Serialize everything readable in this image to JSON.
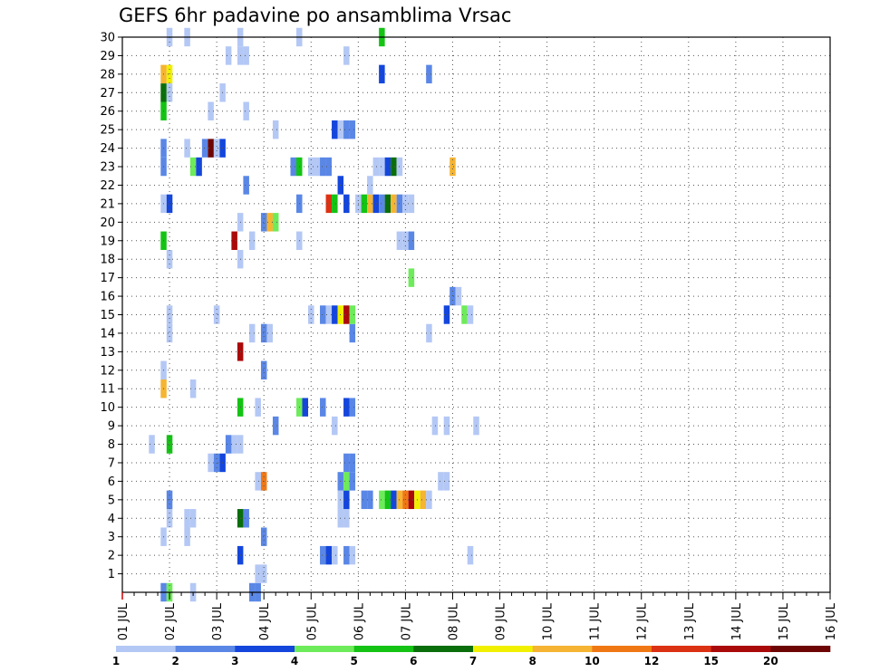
{
  "chart_data": {
    "type": "heatmap",
    "title": "GEFS 6hr padavine po ansamblima Vrsac",
    "xlabel": "",
    "ylabel": "",
    "x_ticks": [
      "01 JUL",
      "02 JUL",
      "03 JUL",
      "04 JUL",
      "05 JUL",
      "06 JUL",
      "07 JUL",
      "08 JUL",
      "09 JUL",
      "10 JUL",
      "11 JUL",
      "12 JUL",
      "13 JUL",
      "14 JUL",
      "15 JUL",
      "16 JUL"
    ],
    "y_ticks": [
      "1",
      "2",
      "3",
      "4",
      "5",
      "6",
      "7",
      "8",
      "9",
      "10",
      "11",
      "12",
      "13",
      "14",
      "15",
      "16",
      "17",
      "18",
      "19",
      "20",
      "21",
      "22",
      "23",
      "24",
      "25",
      "26",
      "27",
      "28",
      "29",
      "30"
    ],
    "xlim": [
      0,
      60
    ],
    "ylim": [
      0,
      30
    ],
    "grid": true,
    "legend": {
      "position": "bottom",
      "labels": [
        "1",
        "2",
        "3",
        "4",
        "5",
        "6",
        "7",
        "8",
        "10",
        "12",
        "15",
        "20"
      ],
      "colors": [
        "#b4c8f5",
        "#5a87e6",
        "#1446dc",
        "#6eeb5a",
        "#14c314",
        "#0a6e0a",
        "#f0f000",
        "#f5b432",
        "#f07814",
        "#dc3214",
        "#aa0a0a",
        "#6e0505"
      ]
    },
    "cells": [
      {
        "x": 3.5,
        "y": 0,
        "c": 2
      },
      {
        "x": 4,
        "y": 0,
        "c": 4
      },
      {
        "x": 6,
        "y": 0,
        "c": 1
      },
      {
        "x": 11,
        "y": 0,
        "c": 2
      },
      {
        "x": 11.5,
        "y": 0,
        "c": 2
      },
      {
        "x": 11.5,
        "y": 1,
        "c": 1
      },
      {
        "x": 12,
        "y": 1,
        "c": 1
      },
      {
        "x": 10,
        "y": 2,
        "c": 3
      },
      {
        "x": 17,
        "y": 2,
        "c": 2
      },
      {
        "x": 17.5,
        "y": 2,
        "c": 3
      },
      {
        "x": 18,
        "y": 2,
        "c": 1
      },
      {
        "x": 19,
        "y": 2,
        "c": 2
      },
      {
        "x": 19.5,
        "y": 2,
        "c": 1
      },
      {
        "x": 29.5,
        "y": 2,
        "c": 1
      },
      {
        "x": 3.5,
        "y": 3,
        "c": 1
      },
      {
        "x": 5.5,
        "y": 3,
        "c": 1
      },
      {
        "x": 12,
        "y": 3,
        "c": 2
      },
      {
        "x": 4,
        "y": 4,
        "c": 1
      },
      {
        "x": 5.5,
        "y": 4,
        "c": 1
      },
      {
        "x": 6,
        "y": 4,
        "c": 1
      },
      {
        "x": 10,
        "y": 4,
        "c": 6
      },
      {
        "x": 10.5,
        "y": 4,
        "c": 2
      },
      {
        "x": 18.5,
        "y": 4,
        "c": 1
      },
      {
        "x": 19,
        "y": 4,
        "c": 1
      },
      {
        "x": 4,
        "y": 5,
        "c": 2
      },
      {
        "x": 18.5,
        "y": 5,
        "c": 1
      },
      {
        "x": 19,
        "y": 5,
        "c": 3
      },
      {
        "x": 20.5,
        "y": 5,
        "c": 2
      },
      {
        "x": 21,
        "y": 5,
        "c": 2
      },
      {
        "x": 22,
        "y": 5,
        "c": 4
      },
      {
        "x": 22.5,
        "y": 5,
        "c": 5
      },
      {
        "x": 23,
        "y": 5,
        "c": 3
      },
      {
        "x": 23.5,
        "y": 5,
        "c": 8
      },
      {
        "x": 24,
        "y": 5,
        "c": 9
      },
      {
        "x": 24.5,
        "y": 5,
        "c": 11
      },
      {
        "x": 25,
        "y": 5,
        "c": 7
      },
      {
        "x": 25.5,
        "y": 5,
        "c": 8
      },
      {
        "x": 26,
        "y": 5,
        "c": 1
      },
      {
        "x": 11.5,
        "y": 6,
        "c": 1
      },
      {
        "x": 12,
        "y": 6,
        "c": 9
      },
      {
        "x": 18.5,
        "y": 6,
        "c": 2
      },
      {
        "x": 19,
        "y": 6,
        "c": 4
      },
      {
        "x": 19.5,
        "y": 6,
        "c": 2
      },
      {
        "x": 27,
        "y": 6,
        "c": 1
      },
      {
        "x": 27.5,
        "y": 6,
        "c": 1
      },
      {
        "x": 7.5,
        "y": 7,
        "c": 1
      },
      {
        "x": 8,
        "y": 7,
        "c": 2
      },
      {
        "x": 8.5,
        "y": 7,
        "c": 3
      },
      {
        "x": 19,
        "y": 7,
        "c": 2
      },
      {
        "x": 19.5,
        "y": 7,
        "c": 2
      },
      {
        "x": 2.5,
        "y": 8,
        "c": 1
      },
      {
        "x": 4,
        "y": 8,
        "c": 5
      },
      {
        "x": 9,
        "y": 8,
        "c": 2
      },
      {
        "x": 9.5,
        "y": 8,
        "c": 1
      },
      {
        "x": 10,
        "y": 8,
        "c": 1
      },
      {
        "x": 13,
        "y": 9,
        "c": 2
      },
      {
        "x": 18,
        "y": 9,
        "c": 1
      },
      {
        "x": 26.5,
        "y": 9,
        "c": 1
      },
      {
        "x": 27.5,
        "y": 9,
        "c": 1
      },
      {
        "x": 30,
        "y": 9,
        "c": 1
      },
      {
        "x": 10,
        "y": 10,
        "c": 5
      },
      {
        "x": 11.5,
        "y": 10,
        "c": 1
      },
      {
        "x": 15,
        "y": 10,
        "c": 4
      },
      {
        "x": 15.5,
        "y": 10,
        "c": 3
      },
      {
        "x": 17,
        "y": 10,
        "c": 2
      },
      {
        "x": 19,
        "y": 10,
        "c": 3
      },
      {
        "x": 19.5,
        "y": 10,
        "c": 2
      },
      {
        "x": 3.5,
        "y": 11,
        "c": 8
      },
      {
        "x": 6,
        "y": 11,
        "c": 1
      },
      {
        "x": 3.5,
        "y": 12,
        "c": 1
      },
      {
        "x": 12,
        "y": 12,
        "c": 2
      },
      {
        "x": 10,
        "y": 13,
        "c": 11
      },
      {
        "x": 4,
        "y": 14,
        "c": 1
      },
      {
        "x": 11,
        "y": 14,
        "c": 1
      },
      {
        "x": 12,
        "y": 14,
        "c": 2
      },
      {
        "x": 12.5,
        "y": 14,
        "c": 1
      },
      {
        "x": 19.5,
        "y": 14,
        "c": 2
      },
      {
        "x": 26,
        "y": 14,
        "c": 1
      },
      {
        "x": 4,
        "y": 15,
        "c": 1
      },
      {
        "x": 8,
        "y": 15,
        "c": 1
      },
      {
        "x": 16,
        "y": 15,
        "c": 1
      },
      {
        "x": 17,
        "y": 15,
        "c": 2
      },
      {
        "x": 17.5,
        "y": 15,
        "c": 1
      },
      {
        "x": 18,
        "y": 15,
        "c": 3
      },
      {
        "x": 18.5,
        "y": 15,
        "c": 7
      },
      {
        "x": 19,
        "y": 15,
        "c": 11
      },
      {
        "x": 19.5,
        "y": 15,
        "c": 4
      },
      {
        "x": 27.5,
        "y": 15,
        "c": 3
      },
      {
        "x": 29,
        "y": 15,
        "c": 4
      },
      {
        "x": 29.5,
        "y": 15,
        "c": 1
      },
      {
        "x": 28,
        "y": 16,
        "c": 2
      },
      {
        "x": 28.5,
        "y": 16,
        "c": 1
      },
      {
        "x": 24.5,
        "y": 17,
        "c": 4
      },
      {
        "x": 4,
        "y": 18,
        "c": 1
      },
      {
        "x": 10,
        "y": 18,
        "c": 1
      },
      {
        "x": 3.5,
        "y": 19,
        "c": 5
      },
      {
        "x": 9.5,
        "y": 19,
        "c": 11
      },
      {
        "x": 11,
        "y": 19,
        "c": 1
      },
      {
        "x": 15,
        "y": 19,
        "c": 1
      },
      {
        "x": 23.5,
        "y": 19,
        "c": 1
      },
      {
        "x": 24,
        "y": 19,
        "c": 1
      },
      {
        "x": 24.5,
        "y": 19,
        "c": 2
      },
      {
        "x": 10,
        "y": 20,
        "c": 1
      },
      {
        "x": 12,
        "y": 20,
        "c": 2
      },
      {
        "x": 12.5,
        "y": 20,
        "c": 8
      },
      {
        "x": 13,
        "y": 20,
        "c": 4
      },
      {
        "x": 3.5,
        "y": 21,
        "c": 1
      },
      {
        "x": 4,
        "y": 21,
        "c": 3
      },
      {
        "x": 15,
        "y": 21,
        "c": 2
      },
      {
        "x": 17.5,
        "y": 21,
        "c": 10
      },
      {
        "x": 18,
        "y": 21,
        "c": 5
      },
      {
        "x": 19,
        "y": 21,
        "c": 3
      },
      {
        "x": 20,
        "y": 21,
        "c": 1
      },
      {
        "x": 20.5,
        "y": 21,
        "c": 5
      },
      {
        "x": 21,
        "y": 21,
        "c": 8
      },
      {
        "x": 21.5,
        "y": 21,
        "c": 3
      },
      {
        "x": 22,
        "y": 21,
        "c": 2
      },
      {
        "x": 22.5,
        "y": 21,
        "c": 6
      },
      {
        "x": 23,
        "y": 21,
        "c": 8
      },
      {
        "x": 23.5,
        "y": 21,
        "c": 2
      },
      {
        "x": 24,
        "y": 21,
        "c": 1
      },
      {
        "x": 24.5,
        "y": 21,
        "c": 1
      },
      {
        "x": 10.5,
        "y": 22,
        "c": 2
      },
      {
        "x": 18.5,
        "y": 22,
        "c": 3
      },
      {
        "x": 21,
        "y": 22,
        "c": 1
      },
      {
        "x": 3.5,
        "y": 23,
        "c": 2
      },
      {
        "x": 6,
        "y": 23,
        "c": 4
      },
      {
        "x": 6.5,
        "y": 23,
        "c": 3
      },
      {
        "x": 14.5,
        "y": 23,
        "c": 2
      },
      {
        "x": 15,
        "y": 23,
        "c": 5
      },
      {
        "x": 16,
        "y": 23,
        "c": 1
      },
      {
        "x": 16.5,
        "y": 23,
        "c": 1
      },
      {
        "x": 17,
        "y": 23,
        "c": 2
      },
      {
        "x": 17.5,
        "y": 23,
        "c": 2
      },
      {
        "x": 21.5,
        "y": 23,
        "c": 1
      },
      {
        "x": 22,
        "y": 23,
        "c": 1
      },
      {
        "x": 22.5,
        "y": 23,
        "c": 3
      },
      {
        "x": 23,
        "y": 23,
        "c": 6
      },
      {
        "x": 23.5,
        "y": 23,
        "c": 1
      },
      {
        "x": 28,
        "y": 23,
        "c": 8
      },
      {
        "x": 3.5,
        "y": 24,
        "c": 2
      },
      {
        "x": 5.5,
        "y": 24,
        "c": 1
      },
      {
        "x": 7,
        "y": 24,
        "c": 2
      },
      {
        "x": 7.5,
        "y": 24,
        "c": 12
      },
      {
        "x": 8,
        "y": 24,
        "c": 1
      },
      {
        "x": 8.5,
        "y": 24,
        "c": 3
      },
      {
        "x": 13,
        "y": 25,
        "c": 1
      },
      {
        "x": 18,
        "y": 25,
        "c": 3
      },
      {
        "x": 18.5,
        "y": 25,
        "c": 1
      },
      {
        "x": 19,
        "y": 25,
        "c": 2
      },
      {
        "x": 19.5,
        "y": 25,
        "c": 2
      },
      {
        "x": 3.5,
        "y": 26,
        "c": 5
      },
      {
        "x": 7.5,
        "y": 26,
        "c": 1
      },
      {
        "x": 10.5,
        "y": 26,
        "c": 1
      },
      {
        "x": 3.5,
        "y": 27,
        "c": 6
      },
      {
        "x": 4,
        "y": 27,
        "c": 1
      },
      {
        "x": 8.5,
        "y": 27,
        "c": 1
      },
      {
        "x": 3.5,
        "y": 28,
        "c": 8
      },
      {
        "x": 4,
        "y": 28,
        "c": 7
      },
      {
        "x": 22,
        "y": 28,
        "c": 3
      },
      {
        "x": 26,
        "y": 28,
        "c": 2
      },
      {
        "x": 9,
        "y": 29,
        "c": 1
      },
      {
        "x": 10,
        "y": 29,
        "c": 1
      },
      {
        "x": 10.5,
        "y": 29,
        "c": 1
      },
      {
        "x": 19,
        "y": 29,
        "c": 1
      },
      {
        "x": 4,
        "y": 30,
        "c": 1
      },
      {
        "x": 5.5,
        "y": 30,
        "c": 1
      },
      {
        "x": 10,
        "y": 30,
        "c": 1
      },
      {
        "x": 15,
        "y": 30,
        "c": 1
      },
      {
        "x": 22,
        "y": 30,
        "c": 5
      }
    ]
  }
}
